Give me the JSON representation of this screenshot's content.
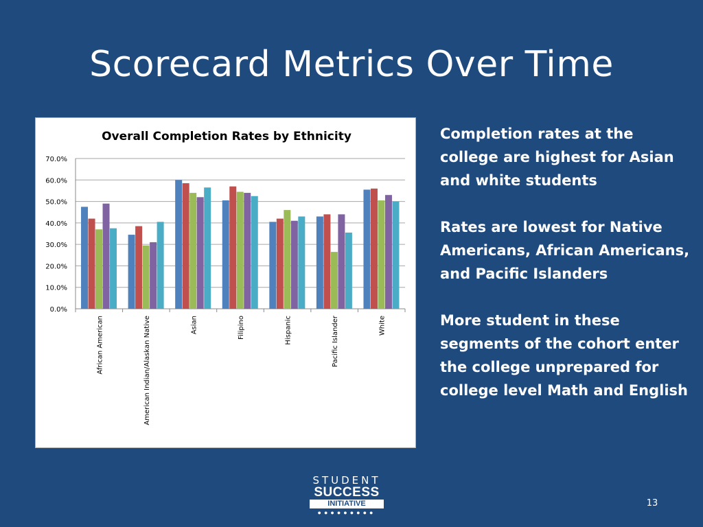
{
  "slide": {
    "title": "Scorecard Metrics Over Time",
    "page_number": "13"
  },
  "bullets": [
    "Completion rates at the college are highest for Asian and white students",
    "Rates are lowest for Native Americans, African Americans, and Pacific Islanders",
    "More student in these segments of the cohort enter the college unprepared for college level Math and English"
  ],
  "logo": {
    "line1": "STUDENT",
    "line2": "SUCCESS",
    "line3": "INITIATIVE",
    "dots": "●●●●●●●●●"
  },
  "colors": {
    "background": "#1f4a7e",
    "series": [
      "#4f81bd",
      "#c0504d",
      "#9bbb59",
      "#8064a2",
      "#4bacc6"
    ]
  },
  "chart_data": {
    "type": "bar",
    "title": "Overall Completion Rates by Ethnicity",
    "categories": [
      "African American",
      "American Indian/Alaskan Native",
      "Asian",
      "Filipino",
      "Hispanic",
      "Pacific Islander",
      "White"
    ],
    "series": [
      {
        "values": [
          47.5,
          34.5,
          60.0,
          50.5,
          40.5,
          43.0,
          55.5
        ]
      },
      {
        "values": [
          42.0,
          38.5,
          58.5,
          57.0,
          42.0,
          44.0,
          56.0
        ]
      },
      {
        "values": [
          37.0,
          29.5,
          54.0,
          54.5,
          46.0,
          26.5,
          50.5
        ]
      },
      {
        "values": [
          49.0,
          31.0,
          52.0,
          54.0,
          41.0,
          44.0,
          53.0
        ]
      },
      {
        "values": [
          37.5,
          40.5,
          56.5,
          52.5,
          43.0,
          35.5,
          50.0
        ]
      }
    ],
    "yticks": [
      "0.0%",
      "10.0%",
      "20.0%",
      "30.0%",
      "40.0%",
      "50.0%",
      "60.0%",
      "70.0%"
    ],
    "ylim": [
      0,
      70
    ],
    "xlabel": "",
    "ylabel": "",
    "grid": true,
    "legend": "none"
  }
}
